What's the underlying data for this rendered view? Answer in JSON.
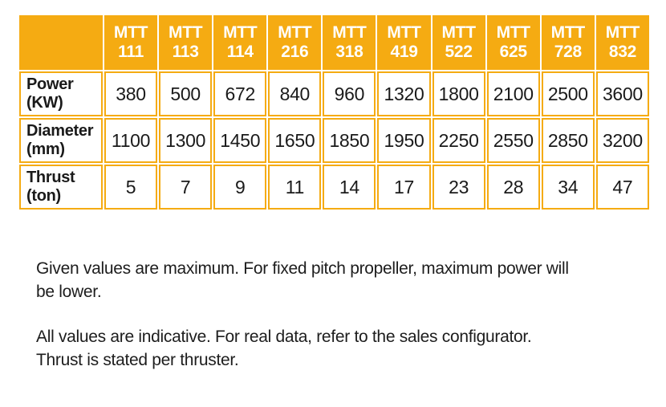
{
  "table": {
    "accent_color": "#F5AB12",
    "header_text_color": "#ffffff",
    "corner_label": "",
    "columns": [
      {
        "series": "MTT",
        "model": "111"
      },
      {
        "series": "MTT",
        "model": "113"
      },
      {
        "series": "MTT",
        "model": "114"
      },
      {
        "series": "MTT",
        "model": "216"
      },
      {
        "series": "MTT",
        "model": "318"
      },
      {
        "series": "MTT",
        "model": "419"
      },
      {
        "series": "MTT",
        "model": "522"
      },
      {
        "series": "MTT",
        "model": "625"
      },
      {
        "series": "MTT",
        "model": "728"
      },
      {
        "series": "MTT",
        "model": "832"
      }
    ],
    "rows": [
      {
        "name": "Power",
        "unit": "(KW)",
        "values": [
          380,
          500,
          672,
          840,
          960,
          1320,
          1800,
          2100,
          2500,
          3600
        ]
      },
      {
        "name": "Diameter",
        "unit": "(mm)",
        "values": [
          1100,
          1300,
          1450,
          1650,
          1850,
          1950,
          2250,
          2550,
          2850,
          3200
        ]
      },
      {
        "name": "Thrust",
        "unit": "(ton)",
        "values": [
          5,
          7,
          9,
          11,
          14,
          17,
          23,
          28,
          34,
          47
        ]
      }
    ]
  },
  "notes": [
    {
      "text": "Given values are maximum. For fixed pitch propeller, maximum power will be lower.",
      "lines": [
        "Given values are maximum. For fixed pitch propeller, maximum power will",
        "be lower."
      ]
    },
    {
      "text": "All values are indicative. For real data, refer to the sales configurator. Thrust is stated per thruster.",
      "lines": [
        "All values are indicative. For real data, refer to the sales configurator.",
        "Thrust is stated per thruster."
      ]
    }
  ]
}
